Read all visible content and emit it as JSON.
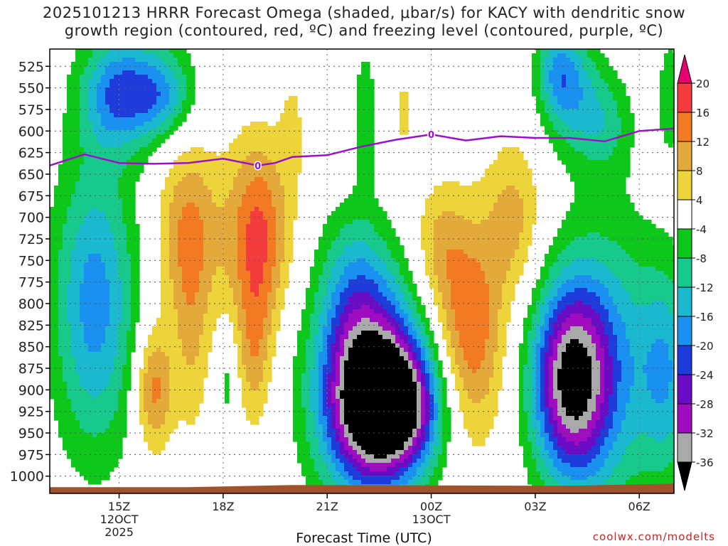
{
  "chart_data": {
    "type": "heatmap",
    "title_line1": "2025101213 HRRR Forecast Omega (shaded, μbar/s) for KACY with dendritic snow",
    "title_line2": "growth region (contoured, red, ºC) and freezing level (contoured, purple, ºC)",
    "xlabel": "Forecast Time (UTC)",
    "credit": "coolwx.com/modelts",
    "x_range_hours": [
      13,
      31
    ],
    "x_ticks": [
      {
        "hour": 15,
        "label": "15Z",
        "sub1": "12OCT",
        "sub2": "2025"
      },
      {
        "hour": 18,
        "label": "18Z",
        "sub1": "",
        "sub2": ""
      },
      {
        "hour": 21,
        "label": "21Z",
        "sub1": "",
        "sub2": ""
      },
      {
        "hour": 24,
        "label": "00Z",
        "sub1": "13OCT",
        "sub2": ""
      },
      {
        "hour": 27,
        "label": "03Z",
        "sub1": "",
        "sub2": ""
      },
      {
        "hour": 30,
        "label": "06Z",
        "sub1": "",
        "sub2": ""
      }
    ],
    "y_levels": [
      "525",
      "550",
      "575",
      "600",
      "625",
      "650",
      "675",
      "700",
      "725",
      "750",
      "775",
      "800",
      "825",
      "850",
      "875",
      "900",
      "925",
      "950",
      "975",
      "1000"
    ],
    "pressure_range_hPa": [
      505,
      1020
    ],
    "colorbar": {
      "labels": [
        "20",
        "16",
        "12",
        "8",
        "4",
        "-4",
        "-8",
        "-12",
        "-16",
        "-20",
        "-24",
        "-28",
        "-32",
        "-36"
      ],
      "colors": [
        "#e8006e",
        "#f53c3c",
        "#f27a22",
        "#e3a93a",
        "#ecd43a",
        "#ffffff",
        "#0dc71b",
        "#18c98c",
        "#1ab9d0",
        "#1a91f0",
        "#1e3cdc",
        "#6a0cc4",
        "#a00dc0",
        "#a9a9a9",
        "#000000"
      ]
    },
    "freezing_level": {
      "label": "0",
      "hours": [
        13.0,
        14.0,
        15.0,
        16.0,
        17.0,
        18.0,
        19.0,
        19.5,
        20.0,
        21.0,
        22.0,
        23.0,
        24.0,
        25.0,
        26.0,
        27.0,
        28.0,
        29.0,
        30.0,
        31.0
      ],
      "pressure": [
        640,
        627,
        637,
        638,
        637,
        632,
        640,
        637,
        630,
        628,
        618,
        610,
        604,
        611,
        606,
        608,
        608,
        612,
        600,
        597
      ]
    },
    "omega_cells": [
      {
        "h": 14.3,
        "p": 800,
        "rh": 1.2,
        "rp": 170,
        "v": -18
      },
      {
        "h": 15.5,
        "p": 550,
        "rh": 1.4,
        "rp": 70,
        "v": -13
      },
      {
        "h": 14.8,
        "p": 560,
        "rh": 0.9,
        "rp": 60,
        "v": -9
      },
      {
        "h": 16.2,
        "p": 560,
        "rh": 0.9,
        "rp": 45,
        "v": -9
      },
      {
        "h": 16.0,
        "p": 900,
        "rh": 0.55,
        "rp": 70,
        "v": 14
      },
      {
        "h": 17.0,
        "p": 720,
        "rh": 0.9,
        "rp": 110,
        "v": 13
      },
      {
        "h": 19.0,
        "p": 720,
        "rh": 0.9,
        "rp": 110,
        "v": 17
      },
      {
        "h": 18.9,
        "p": 860,
        "rh": 0.5,
        "rp": 90,
        "v": 9
      },
      {
        "h": 17.1,
        "p": 860,
        "rh": 0.5,
        "rp": 110,
        "v": 6
      },
      {
        "h": 18.1,
        "p": 890,
        "rh": 0.3,
        "rp": 60,
        "v": -6
      },
      {
        "h": 20.0,
        "p": 600,
        "rh": 0.35,
        "rp": 70,
        "v": 5
      },
      {
        "h": 22.1,
        "p": 580,
        "rh": 0.35,
        "rp": 80,
        "v": -7
      },
      {
        "h": 23.2,
        "p": 580,
        "rh": 0.3,
        "rp": 60,
        "v": 5
      },
      {
        "h": 22.2,
        "p": 900,
        "rh": 1.5,
        "rp": 120,
        "v": -38
      },
      {
        "h": 23.0,
        "p": 920,
        "rh": 1.3,
        "rp": 70,
        "v": -28
      },
      {
        "h": 21.8,
        "p": 770,
        "rh": 1.0,
        "rp": 90,
        "v": -9
      },
      {
        "h": 25.1,
        "p": 830,
        "rh": 1.0,
        "rp": 130,
        "v": 16
      },
      {
        "h": 24.2,
        "p": 730,
        "rh": 0.7,
        "rp": 70,
        "v": 7
      },
      {
        "h": 26.4,
        "p": 700,
        "rh": 0.8,
        "rp": 90,
        "v": 9
      },
      {
        "h": 28.0,
        "p": 890,
        "rh": 1.1,
        "rp": 110,
        "v": -33
      },
      {
        "h": 29.1,
        "p": 870,
        "rh": 1.5,
        "rp": 170,
        "v": -14
      },
      {
        "h": 30.8,
        "p": 880,
        "rh": 0.8,
        "rp": 120,
        "v": -13
      },
      {
        "h": 28.0,
        "p": 550,
        "rh": 0.8,
        "rp": 70,
        "v": -13
      },
      {
        "h": 27.6,
        "p": 530,
        "rh": 0.6,
        "rp": 50,
        "v": -9
      },
      {
        "h": 29.0,
        "p": 590,
        "rh": 0.8,
        "rp": 60,
        "v": -9
      },
      {
        "h": 30.9,
        "p": 560,
        "rh": 0.4,
        "rp": 70,
        "v": -7
      }
    ]
  }
}
